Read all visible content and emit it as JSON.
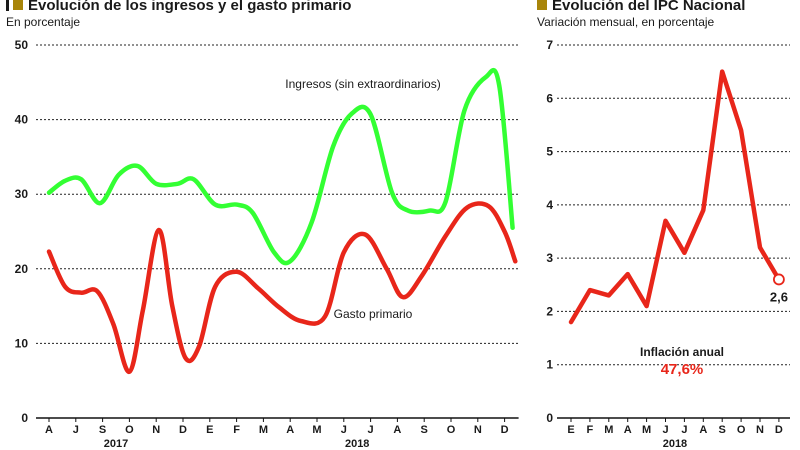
{
  "colors": {
    "accent": "#a8850a",
    "green": "#33ff33",
    "red": "#e8261a"
  },
  "left": {
    "title": "Evolución de los ingresos y el gasto primario",
    "subtitle": "En porcentaje"
  },
  "right": {
    "title": "Evolución del IPC Nacional",
    "subtitle": "Variación mensual, en porcentaje"
  },
  "chart_data": [
    {
      "type": "line",
      "title": "Evolución de los ingresos y el gasto primario",
      "subtitle": "En porcentaje",
      "categories": [
        "A",
        "J",
        "S",
        "O",
        "N",
        "D",
        "E",
        "F",
        "M",
        "A",
        "M",
        "J",
        "J",
        "A",
        "S",
        "O",
        "N",
        "D"
      ],
      "year_labels": [
        {
          "label": "2017",
          "index": 2.5
        },
        {
          "label": "2018",
          "index": 11.5
        }
      ],
      "ylim": [
        0,
        50
      ],
      "yticks": [
        0,
        10,
        20,
        30,
        40,
        50
      ],
      "grid": true,
      "series": [
        {
          "name": "Ingresos (sin extraordinarios)",
          "color": "#33ff33",
          "points": [
            [
              0,
              30.2
            ],
            [
              0.6,
              31.8
            ],
            [
              1.2,
              32.0
            ],
            [
              1.9,
              28.8
            ],
            [
              2.6,
              32.6
            ],
            [
              3.3,
              33.8
            ],
            [
              4.0,
              31.4
            ],
            [
              4.8,
              31.4
            ],
            [
              5.4,
              32.0
            ],
            [
              6.2,
              28.6
            ],
            [
              7.0,
              28.6
            ],
            [
              7.6,
              27.5
            ],
            [
              8.4,
              22.2
            ],
            [
              9.0,
              21.0
            ],
            [
              9.8,
              26.2
            ],
            [
              10.6,
              36.4
            ],
            [
              11.3,
              40.8
            ],
            [
              12.0,
              40.7
            ],
            [
              12.8,
              30.2
            ],
            [
              13.4,
              27.8
            ],
            [
              14.2,
              27.8
            ],
            [
              14.8,
              29.0
            ],
            [
              15.5,
              41.2
            ],
            [
              16.3,
              45.7
            ],
            [
              16.8,
              44.6
            ],
            [
              17.3,
              25.5
            ]
          ]
        },
        {
          "name": "Gasto primario",
          "color": "#e8261a",
          "points": [
            [
              0,
              22.3
            ],
            [
              0.6,
              17.6
            ],
            [
              1.2,
              16.8
            ],
            [
              1.8,
              17.0
            ],
            [
              2.4,
              12.6
            ],
            [
              3.0,
              6.2
            ],
            [
              3.5,
              14.4
            ],
            [
              4.1,
              25.2
            ],
            [
              4.6,
              15.0
            ],
            [
              5.1,
              8.0
            ],
            [
              5.6,
              9.6
            ],
            [
              6.2,
              17.6
            ],
            [
              7.0,
              19.6
            ],
            [
              7.8,
              17.4
            ],
            [
              8.6,
              14.8
            ],
            [
              9.4,
              13.0
            ],
            [
              10.3,
              13.6
            ],
            [
              11.0,
              22.2
            ],
            [
              11.8,
              24.6
            ],
            [
              12.6,
              20.0
            ],
            [
              13.2,
              16.2
            ],
            [
              13.9,
              19.0
            ],
            [
              14.8,
              24.4
            ],
            [
              15.6,
              28.2
            ],
            [
              16.4,
              28.4
            ],
            [
              17.0,
              25.0
            ],
            [
              17.4,
              21.0
            ]
          ]
        }
      ],
      "annotations": [
        "Ingresos (sin extraordinarios)",
        "Gasto primario"
      ]
    },
    {
      "type": "line",
      "title": "Evolución del IPC Nacional",
      "subtitle": "Variación mensual, en porcentaje",
      "categories": [
        "E",
        "F",
        "M",
        "A",
        "M",
        "J",
        "J",
        "A",
        "S",
        "O",
        "N",
        "D"
      ],
      "year_labels": [
        {
          "label": "2018",
          "index": 5.5
        }
      ],
      "ylim": [
        0,
        7
      ],
      "yticks": [
        0,
        1,
        2,
        3,
        4,
        5,
        6,
        7
      ],
      "grid": true,
      "series": [
        {
          "color": "#e8261a",
          "values": [
            1.8,
            2.4,
            2.3,
            2.7,
            2.1,
            3.7,
            3.1,
            3.9,
            6.5,
            5.4,
            3.2,
            2.6
          ]
        }
      ],
      "last_value_label": "2,6",
      "annotations": [
        {
          "label": "Inflación anual",
          "value": "47,6%"
        }
      ]
    }
  ]
}
